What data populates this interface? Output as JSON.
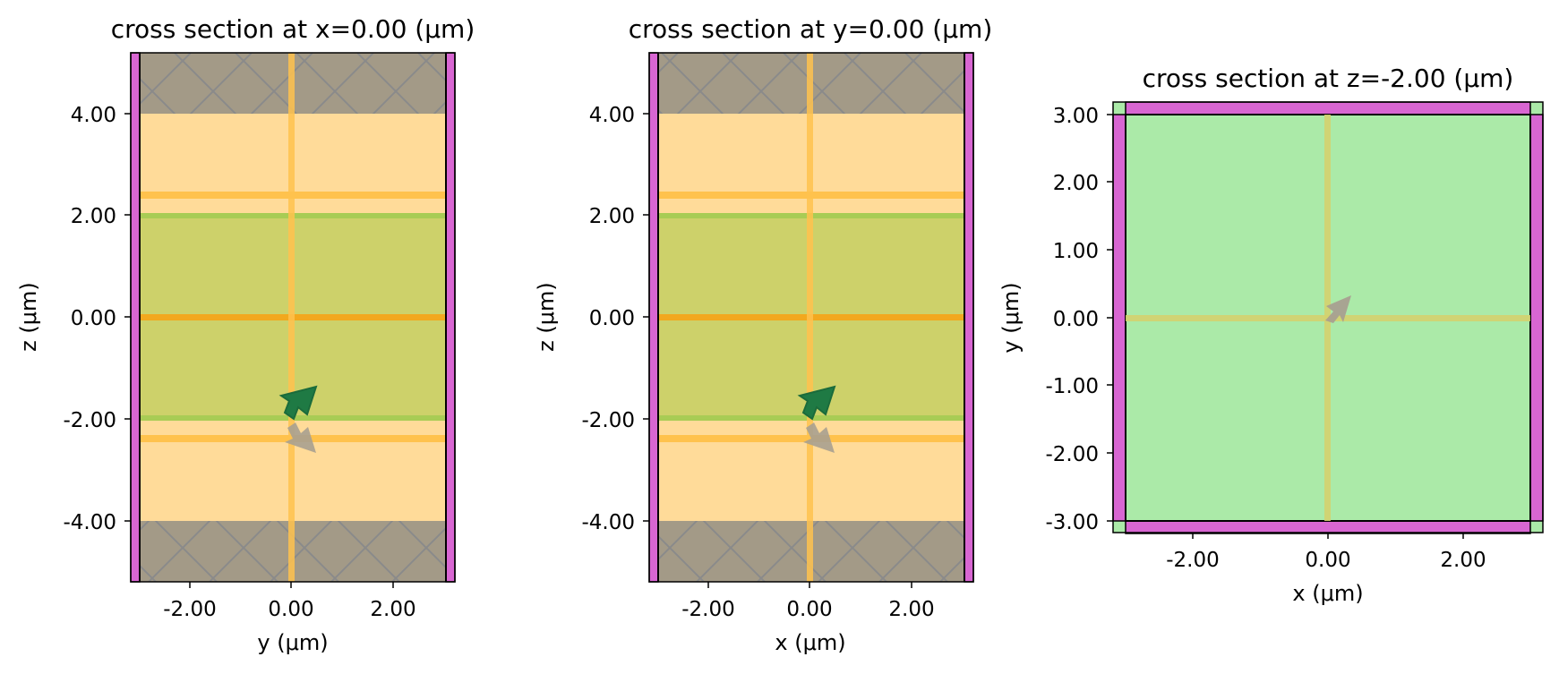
{
  "figure": {
    "panels": [
      {
        "id": "xcut",
        "title": "cross section at x=0.00 (μm)",
        "xlabel": "y (μm)",
        "ylabel": "z (μm)",
        "xticks": [
          "-2.00",
          "0.00",
          "2.00"
        ],
        "yticks": [
          "4.00",
          "2.00",
          "0.00",
          "-2.00",
          "-4.00"
        ]
      },
      {
        "id": "ycut",
        "title": "cross section at y=0.00 (μm)",
        "xlabel": "x (μm)",
        "ylabel": "z (μm)",
        "xticks": [
          "-2.00",
          "0.00",
          "2.00"
        ],
        "yticks": [
          "4.00",
          "2.00",
          "0.00",
          "-2.00",
          "-4.00"
        ]
      },
      {
        "id": "zcut",
        "title": "cross section at z=-2.00 (μm)",
        "xlabel": "x (μm)",
        "ylabel": "y (μm)",
        "xticks": [
          "-2.00",
          "0.00",
          "2.00"
        ],
        "yticks": [
          "3.00",
          "2.00",
          "1.00",
          "0.00",
          "-1.00",
          "-2.00",
          "-3.00"
        ]
      }
    ],
    "colors": {
      "pml_magenta": "#d866d2",
      "pec_gray": "#a39a87",
      "pec_hatch": "#8a8a8a",
      "background_orange": "#ffdb99",
      "monitor_orange": "#ffc24d",
      "source_line_orange": "#f2a81e",
      "medium_olive": "#cdd16a",
      "medium_edge": "#a8cc55",
      "plane_green": "#abeaa8",
      "arrow_green": "#1f7a44",
      "arrow_gray": "#a8a090",
      "frame": "#000000"
    }
  }
}
